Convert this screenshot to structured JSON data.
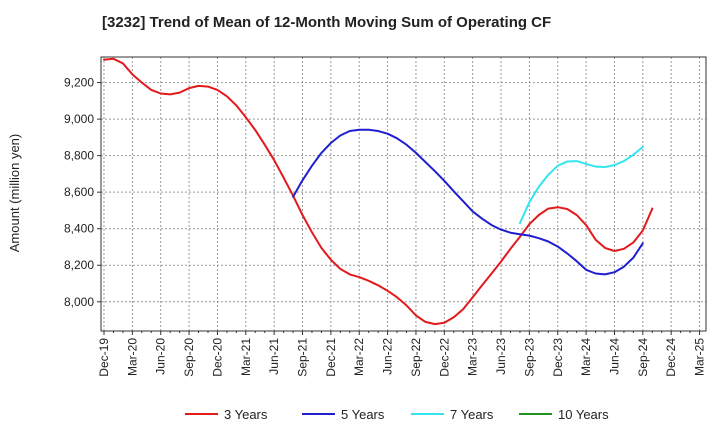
{
  "chart_data": {
    "type": "line",
    "title": "[3232]  Trend of Mean of 12-Month Moving Sum of Operating CF",
    "xlabel": "",
    "ylabel": "Amount (million yen)",
    "ylim": [
      7840,
      9340
    ],
    "yticks": [
      8000,
      8200,
      8400,
      8600,
      8800,
      9000,
      9200
    ],
    "ytick_labels": [
      "8,000",
      "8,200",
      "8,400",
      "8,600",
      "8,800",
      "9,000",
      "9,200"
    ],
    "x_start": "Dec-19",
    "x_ticks": [
      "Dec-19",
      "Mar-20",
      "Jun-20",
      "Sep-20",
      "Dec-20",
      "Mar-21",
      "Jun-21",
      "Sep-21",
      "Dec-21",
      "Mar-22",
      "Jun-22",
      "Sep-22",
      "Dec-22",
      "Mar-23",
      "Jun-23",
      "Sep-23",
      "Dec-23",
      "Mar-24",
      "Jun-24",
      "Sep-24",
      "Dec-24",
      "Mar-25"
    ],
    "n_months": 64,
    "grid": true,
    "legend_position": "bottom",
    "series": [
      {
        "name": "3 Years",
        "color": "#e31a1c",
        "start_index": 0,
        "values": [
          9325,
          9330,
          9305,
          9245,
          9200,
          9160,
          9140,
          9135,
          9145,
          9170,
          9182,
          9178,
          9160,
          9125,
          9075,
          9010,
          8940,
          8860,
          8775,
          8680,
          8580,
          8475,
          8380,
          8295,
          8230,
          8180,
          8150,
          8135,
          8115,
          8090,
          8060,
          8025,
          7980,
          7925,
          7890,
          7878,
          7885,
          7915,
          7960,
          8025,
          8090,
          8155,
          8220,
          8290,
          8355,
          8425,
          8475,
          8510,
          8518,
          8508,
          8475,
          8420,
          8340,
          8295,
          8278,
          8290,
          8325,
          8390,
          8510
        ]
      },
      {
        "name": "5 Years",
        "color": "#1f1fcf",
        "start_index": 20,
        "values": [
          8575,
          8665,
          8745,
          8815,
          8870,
          8910,
          8935,
          8942,
          8942,
          8935,
          8920,
          8895,
          8860,
          8815,
          8765,
          8715,
          8662,
          8605,
          8550,
          8495,
          8455,
          8420,
          8395,
          8378,
          8370,
          8362,
          8348,
          8330,
          8302,
          8265,
          8222,
          8175,
          8155,
          8150,
          8162,
          8192,
          8242,
          8320
        ]
      },
      {
        "name": "7 Years",
        "color": "#33e5f0",
        "start_index": 44,
        "values": [
          8430,
          8545,
          8630,
          8695,
          8745,
          8768,
          8770,
          8755,
          8740,
          8738,
          8748,
          8770,
          8805,
          8848
        ]
      },
      {
        "name": "10 Years",
        "color": "#1f8f1f",
        "start_index": 0,
        "values": []
      }
    ]
  }
}
